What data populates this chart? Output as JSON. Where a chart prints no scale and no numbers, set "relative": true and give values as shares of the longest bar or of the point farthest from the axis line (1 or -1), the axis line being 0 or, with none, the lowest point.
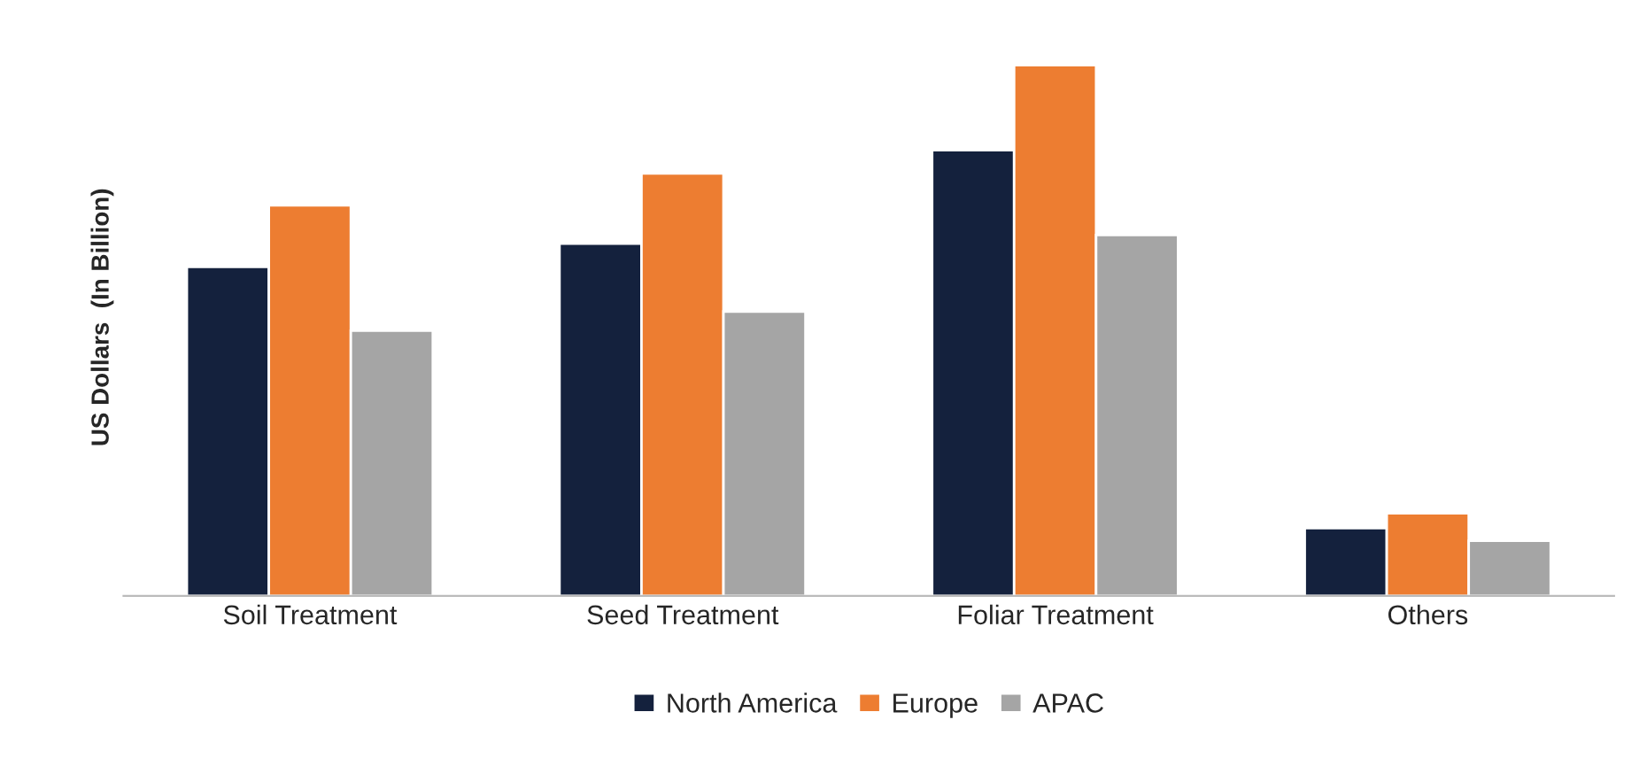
{
  "chart_data": {
    "type": "bar",
    "relative": true,
    "ylabel": "US Dollars  (In Billion)",
    "categories": [
      "Soil Treatment",
      "Seed Treatment",
      "Foliar Treatment",
      "Others"
    ],
    "series": [
      {
        "name": "North America",
        "color": "#14213d",
        "values": [
          0.62,
          0.664,
          0.84,
          0.128
        ]
      },
      {
        "name": "Europe",
        "color": "#ed7d31",
        "values": [
          0.736,
          0.796,
          1.0,
          0.156
        ]
      },
      {
        "name": "APAC",
        "color": "#a5a5a5",
        "values": [
          0.5,
          0.536,
          0.68,
          0.104
        ]
      }
    ],
    "legend": "bottom",
    "grid": false
  }
}
